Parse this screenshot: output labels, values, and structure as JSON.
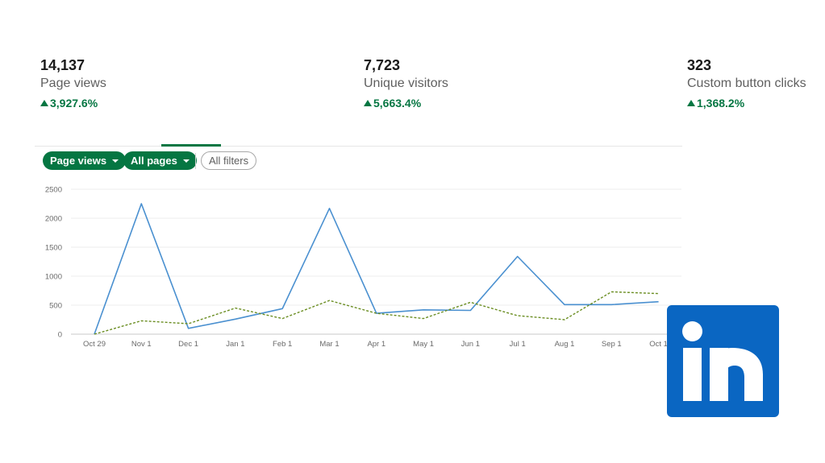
{
  "stats": [
    {
      "value": "14,137",
      "label": "Page views",
      "change": "3,927.6%"
    },
    {
      "value": "7,723",
      "label": "Unique visitors",
      "change": "5,663.4%"
    },
    {
      "value": "323",
      "label": "Custom button clicks",
      "change": "1,368.2%"
    }
  ],
  "filters": {
    "metric": "Page views",
    "pages": "All pages",
    "all_filters": "All filters"
  },
  "colors": {
    "accent": "#057642",
    "series_primary": "#4a90d0",
    "series_secondary": "#6b8e23",
    "linkedin_blue": "#0a66c2"
  },
  "icons": {
    "increase": "triangle-up-icon",
    "dropdown": "caret-down-icon",
    "brand": "linkedin-logo"
  },
  "chart_data": {
    "type": "line",
    "x": [
      "Oct 29",
      "Nov 1",
      "Dec 1",
      "Jan 1",
      "Feb 1",
      "Mar 1",
      "Apr 1",
      "May 1",
      "Jun 1",
      "Jul 1",
      "Aug 1",
      "Sep 1",
      "Oct 1"
    ],
    "series": [
      {
        "values": [
          0,
          2250,
          100,
          260,
          440,
          2170,
          360,
          420,
          410,
          1340,
          510,
          510,
          560
        ]
      },
      {
        "values": [
          0,
          230,
          180,
          450,
          270,
          580,
          360,
          270,
          550,
          320,
          250,
          730,
          700
        ]
      }
    ],
    "yticks": [
      0,
      500,
      1000,
      1500,
      2000,
      2500
    ],
    "ylim": [
      0,
      2500
    ],
    "grid": true,
    "title": "",
    "xlabel": "",
    "ylabel": ""
  }
}
